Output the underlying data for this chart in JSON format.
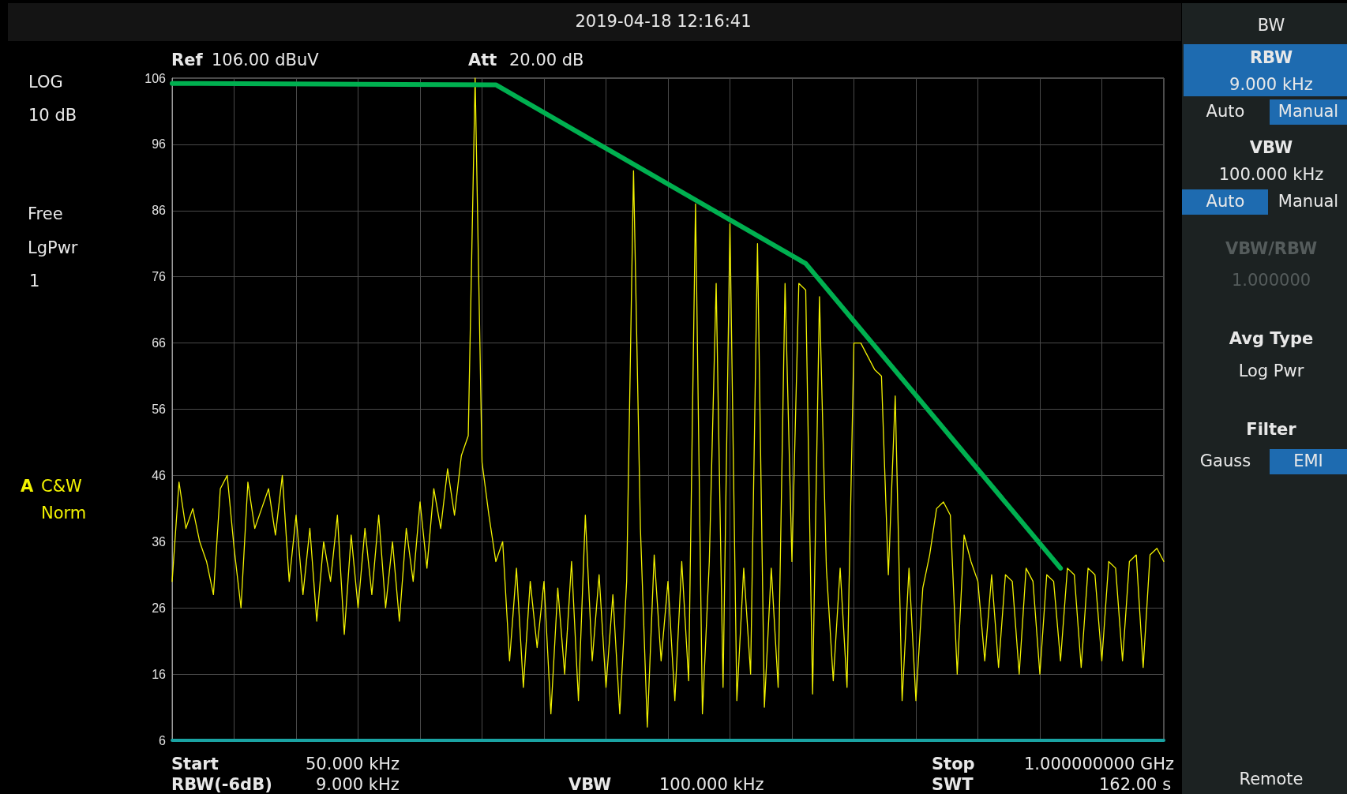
{
  "chart_data": {
    "type": "line",
    "categories": [
      null,
      null,
      null,
      null,
      null,
      null,
      null,
      null,
      null,
      null,
      null,
      null,
      null,
      null,
      null,
      null,
      null,
      null,
      null,
      null,
      null,
      null,
      null,
      null,
      null,
      null,
      null,
      null,
      null,
      null,
      null,
      null,
      null,
      null,
      null,
      null,
      null,
      null,
      null,
      null,
      null,
      null,
      null,
      null,
      null,
      null,
      null,
      null,
      null,
      null,
      null,
      null,
      null,
      null,
      null,
      null,
      null,
      null,
      null,
      null,
      null,
      null,
      null,
      null,
      null,
      null,
      null,
      null,
      null,
      null,
      null,
      null,
      null,
      null,
      null,
      null,
      null,
      null,
      null,
      null,
      null,
      null,
      null,
      null,
      null,
      null,
      null,
      null,
      null,
      null,
      null,
      null,
      null,
      null,
      null,
      null,
      null,
      null,
      null,
      null,
      null,
      null,
      null,
      null,
      null,
      null,
      null,
      null,
      null,
      null,
      null,
      null,
      null,
      null,
      null,
      null,
      null,
      null,
      null,
      null,
      null,
      null,
      null,
      null,
      null,
      null,
      null,
      null,
      null,
      null,
      null,
      null,
      null,
      null,
      null,
      null,
      null,
      null,
      null,
      null,
      null,
      null,
      null,
      null,
      null
    ],
    "series": [
      {
        "color": "#f2f200",
        "values": [
          30,
          45,
          38,
          41,
          36,
          33,
          28,
          44,
          46,
          35,
          26,
          45,
          38,
          41,
          44,
          37,
          46,
          30,
          40,
          28,
          38,
          24,
          36,
          30,
          40,
          22,
          37,
          26,
          38,
          28,
          40,
          26,
          36,
          24,
          38,
          30,
          42,
          32,
          44,
          38,
          47,
          40,
          49,
          52,
          106,
          48,
          40,
          33,
          36,
          18,
          32,
          14,
          30,
          20,
          30,
          10,
          29,
          16,
          33,
          12,
          40,
          18,
          31,
          14,
          28,
          10,
          30,
          92,
          38,
          8,
          34,
          18,
          30,
          12,
          33,
          15,
          87,
          10,
          33,
          75,
          14,
          84,
          12,
          32,
          16,
          81,
          11,
          32,
          14,
          75,
          33,
          75,
          74,
          13,
          73,
          32,
          15,
          32,
          14,
          66,
          66,
          64,
          62,
          61,
          31,
          58,
          12,
          32,
          12,
          29,
          34,
          41,
          42,
          40,
          16,
          37,
          33,
          30,
          18,
          31,
          17,
          31,
          30,
          16,
          32,
          30,
          16,
          31,
          30,
          18,
          32,
          31,
          17,
          32,
          31,
          18,
          33,
          32,
          18,
          33,
          34,
          17,
          34,
          35,
          33
        ]
      },
      {
        "color": "#00b050",
        "values": [
          105.2,
          null,
          null,
          null,
          null,
          null,
          null,
          null,
          null,
          null,
          null,
          null,
          null,
          null,
          null,
          null,
          null,
          null,
          null,
          null,
          null,
          null,
          null,
          null,
          null,
          null,
          null,
          null,
          null,
          null,
          null,
          null,
          null,
          null,
          null,
          null,
          null,
          null,
          null,
          null,
          null,
          null,
          null,
          null,
          null,
          null,
          null,
          105,
          null,
          null,
          null,
          null,
          null,
          null,
          null,
          null,
          null,
          null,
          null,
          null,
          null,
          null,
          null,
          null,
          null,
          null,
          null,
          null,
          null,
          null,
          null,
          null,
          null,
          null,
          null,
          null,
          null,
          null,
          null,
          null,
          null,
          null,
          null,
          null,
          null,
          null,
          null,
          null,
          null,
          null,
          null,
          null,
          78,
          null,
          null,
          null,
          null,
          null,
          null,
          null,
          null,
          null,
          null,
          null,
          null,
          null,
          null,
          null,
          null,
          null,
          null,
          null,
          null,
          null,
          null,
          null,
          null,
          null,
          null,
          null,
          null,
          null,
          null,
          null,
          null,
          null,
          null,
          null,
          null,
          32,
          null,
          null,
          null,
          null,
          null,
          null,
          null,
          null,
          null,
          null,
          null,
          null,
          null,
          null,
          null
        ]
      }
    ],
    "ylim": [
      6,
      106
    ],
    "yticks": [
      6,
      16,
      26,
      36,
      46,
      56,
      66,
      76,
      86,
      96,
      106
    ],
    "grid": true,
    "marker": "none",
    "line_style": "solid",
    "tick_labels": "y",
    "annotations": [
      "2019-04-18   12:16:41",
      "Ref",
      "106.00 dBuV",
      "Att",
      "20.00 dB",
      "LOG",
      "10 dB",
      "Free",
      "LgPwr",
      "1",
      "A",
      "C&W",
      "Norm",
      "Start",
      "50.000 kHz",
      "RBW(-6dB)",
      "9.000 kHz",
      "VBW",
      "100.000 kHz",
      "Stop",
      "1.000000000 GHz",
      "SWT",
      "162.00 s",
      "BW",
      "RBW",
      "9.000 kHz",
      "Auto",
      "Manual",
      "VBW",
      "100.000 kHz",
      "Auto",
      "Manual",
      "VBW/RBW",
      "1.000000",
      "Avg Type",
      "Log Pwr",
      "Filter",
      "Gauss",
      "EMI",
      "Remote"
    ]
  }
}
